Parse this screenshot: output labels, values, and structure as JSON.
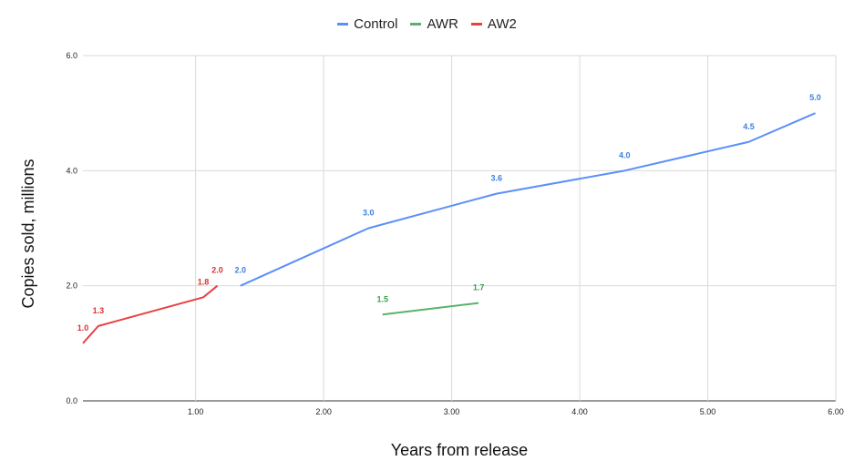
{
  "chart_data": {
    "type": "line",
    "title": "",
    "xlabel": "Years from release",
    "ylabel": "Copies sold, millions",
    "xlim": [
      0.12,
      6.0
    ],
    "ylim": [
      0.0,
      6.0
    ],
    "x_ticks": [
      1.0,
      2.0,
      3.0,
      4.0,
      5.0,
      6.0
    ],
    "x_tick_labels": [
      "1.00",
      "2.00",
      "3.00",
      "4.00",
      "5.00",
      "6.00"
    ],
    "y_ticks": [
      0.0,
      2.0,
      4.0,
      6.0
    ],
    "y_tick_labels": [
      "0.0",
      "2.0",
      "4.0",
      "6.0"
    ],
    "grid": true,
    "legend_position": "top-center",
    "series": [
      {
        "name": "Control",
        "color": "#5b8ff9",
        "label_color": "#3d7fe0",
        "points": [
          {
            "x": 1.35,
            "y": 2.0,
            "label": "2.0"
          },
          {
            "x": 2.35,
            "y": 3.0,
            "label": "3.0"
          },
          {
            "x": 3.35,
            "y": 3.6,
            "label": "3.6"
          },
          {
            "x": 4.35,
            "y": 4.0,
            "label": "4.0"
          },
          {
            "x": 5.32,
            "y": 4.5,
            "label": "4.5"
          },
          {
            "x": 5.84,
            "y": 5.0,
            "label": "5.0"
          }
        ]
      },
      {
        "name": "AWR",
        "color": "#57b36a",
        "label_color": "#3aa04f",
        "points": [
          {
            "x": 2.46,
            "y": 1.5,
            "label": "1.5"
          },
          {
            "x": 3.21,
            "y": 1.7,
            "label": "1.7"
          }
        ]
      },
      {
        "name": "AW2",
        "color": "#e94040",
        "label_color": "#e02f2f",
        "points": [
          {
            "x": 0.12,
            "y": 1.0,
            "label": "1.0"
          },
          {
            "x": 0.24,
            "y": 1.3,
            "label": "1.3"
          },
          {
            "x": 1.06,
            "y": 1.8,
            "label": "1.8"
          },
          {
            "x": 1.17,
            "y": 2.0,
            "label": "2.0"
          }
        ]
      }
    ]
  }
}
